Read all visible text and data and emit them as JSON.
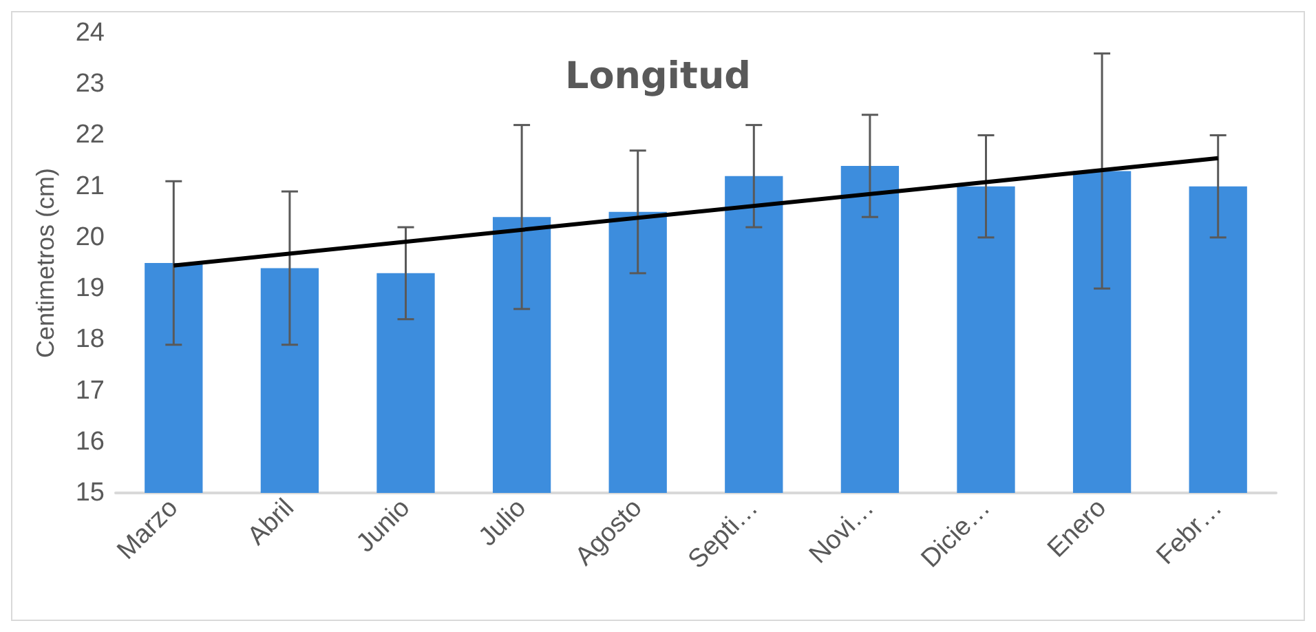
{
  "chart_data": {
    "type": "bar",
    "title": "Longitud",
    "ylabel": "Centimetros (cm)",
    "categories": [
      "Marzo",
      "Abril",
      "Junio",
      "Julio",
      "Agosto",
      "Septi…",
      "Novi…",
      "Dicie…",
      "Enero",
      "Febr…"
    ],
    "series": [
      {
        "color": "#3d8ddd",
        "values": [
          19.5,
          19.4,
          19.3,
          20.4,
          20.5,
          21.2,
          21.4,
          21.0,
          21.3,
          21.0
        ],
        "errors": [
          1.6,
          1.5,
          0.9,
          1.8,
          1.2,
          1.0,
          1.0,
          1.0,
          2.3,
          1.0
        ]
      },
      {
        "type": "line",
        "color": "#000000",
        "x": [
          "Marzo",
          "Febr…"
        ],
        "values": [
          19.45,
          21.55
        ]
      }
    ],
    "ylim": [
      15,
      24
    ],
    "yticks": [
      15,
      16,
      17,
      18,
      19,
      20,
      21,
      22,
      23,
      24
    ],
    "grid": false
  }
}
